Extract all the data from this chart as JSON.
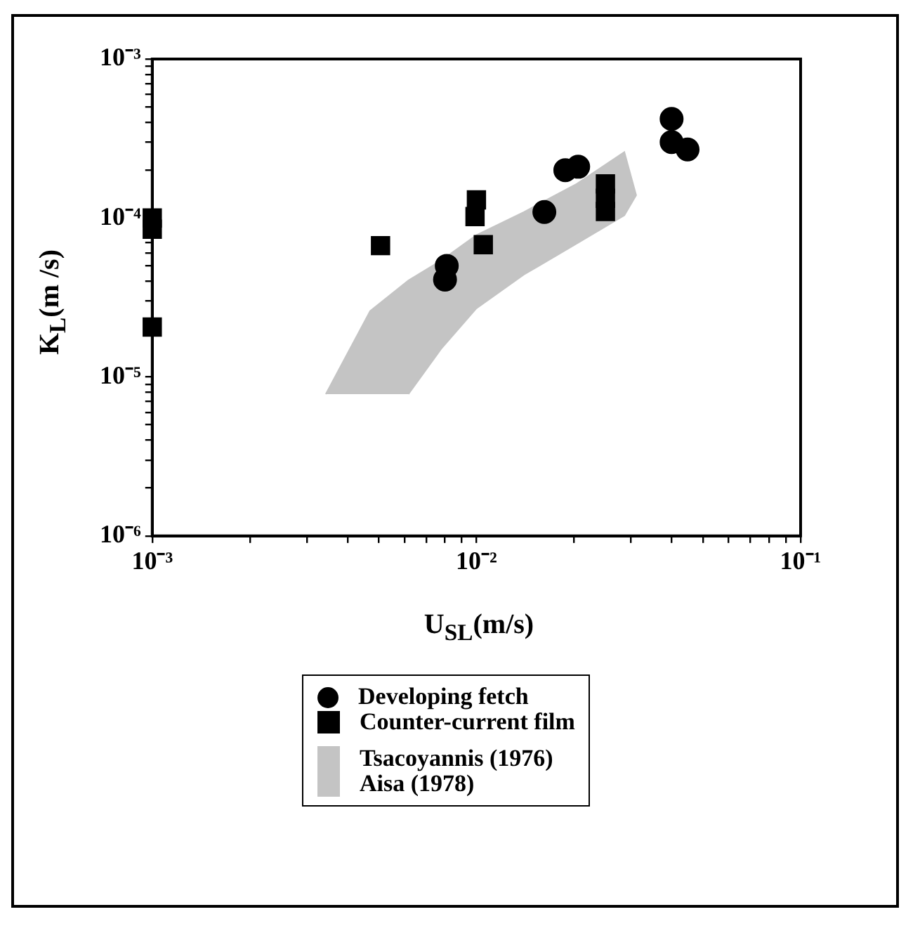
{
  "chart_data": {
    "type": "scatter",
    "xlabel": "U$_{SL}$(m/s)",
    "ylabel": "K$_{L}$(m /s)",
    "log": "xy",
    "grid": false,
    "legend": "bottom",
    "xlim": [
      0.001,
      0.1
    ],
    "ylim": [
      1e-06,
      0.001
    ],
    "xticks": [
      {
        "value": 0.001,
        "label": "10⁻³"
      },
      {
        "value": 0.002,
        "label": null
      },
      {
        "value": 0.003,
        "label": null
      },
      {
        "value": 0.004,
        "label": null
      },
      {
        "value": 0.005,
        "label": null
      },
      {
        "value": 0.006,
        "label": null
      },
      {
        "value": 0.007,
        "label": null
      },
      {
        "value": 0.008,
        "label": null
      },
      {
        "value": 0.009,
        "label": null
      },
      {
        "value": 0.01,
        "label": "10⁻²"
      },
      {
        "value": 0.02,
        "label": null
      },
      {
        "value": 0.03,
        "label": null
      },
      {
        "value": 0.04,
        "label": null
      },
      {
        "value": 0.05,
        "label": null
      },
      {
        "value": 0.06,
        "label": null
      },
      {
        "value": 0.07,
        "label": null
      },
      {
        "value": 0.08,
        "label": null
      },
      {
        "value": 0.09,
        "label": null
      },
      {
        "value": 0.1,
        "label": "10⁻¹"
      }
    ],
    "yticks": [
      {
        "value": 1e-06,
        "label": "10⁻⁶"
      },
      {
        "value": 2e-06,
        "label": null
      },
      {
        "value": 3e-06,
        "label": null
      },
      {
        "value": 4e-06,
        "label": null
      },
      {
        "value": 5e-06,
        "label": null
      },
      {
        "value": 6e-06,
        "label": null
      },
      {
        "value": 7e-06,
        "label": null
      },
      {
        "value": 8e-06,
        "label": null
      },
      {
        "value": 9e-06,
        "label": null
      },
      {
        "value": 1e-05,
        "label": "10⁻⁵"
      },
      {
        "value": 2e-05,
        "label": null
      },
      {
        "value": 3e-05,
        "label": null
      },
      {
        "value": 4e-05,
        "label": null
      },
      {
        "value": 5e-05,
        "label": null
      },
      {
        "value": 6e-05,
        "label": null
      },
      {
        "value": 7e-05,
        "label": null
      },
      {
        "value": 8e-05,
        "label": null
      },
      {
        "value": 9e-05,
        "label": null
      },
      {
        "value": 0.0001,
        "label": "10⁻⁴"
      },
      {
        "value": 0.0002,
        "label": null
      },
      {
        "value": 0.0003,
        "label": null
      },
      {
        "value": 0.0004,
        "label": null
      },
      {
        "value": 0.0005,
        "label": null
      },
      {
        "value": 0.0006,
        "label": null
      },
      {
        "value": 0.0007,
        "label": null
      },
      {
        "value": 0.0008,
        "label": null
      },
      {
        "value": 0.0009,
        "label": null
      },
      {
        "value": 0.001,
        "label": "10⁻³"
      }
    ],
    "series": [
      {
        "name": "Developing  fetch",
        "type": "scatter",
        "marker": "circle",
        "color": "#000000",
        "x": [
          0.04,
          0.04,
          0.0448,
          0.0188,
          0.0206,
          0.0162,
          0.0081,
          0.008
        ],
        "values": [
          0.00042,
          0.0003,
          0.00027,
          0.0002,
          0.00021,
          0.000109,
          5e-05,
          4.1e-05
        ]
      },
      {
        "name": "Counter-current film",
        "type": "scatter",
        "marker": "square",
        "color": "#000000",
        "x": [
          0.001,
          0.001,
          0.001,
          0.00506,
          0.01,
          0.0099,
          0.0105,
          0.025,
          0.025,
          0.025
        ],
        "values": [
          0.0001,
          8.5e-05,
          2.06e-05,
          6.7e-05,
          0.00013,
          0.000102,
          6.8e-05,
          0.000164,
          0.000133,
          0.00011
        ]
      },
      {
        "name": "Tsacoyannis  (1976)\nAisa  (1978)",
        "type": "area",
        "color": "#c4c4c4",
        "x": [
          0.00343,
          0.0047,
          0.00617,
          0.00778,
          0.01,
          0.014,
          0.0204,
          0.0286,
          0.0311,
          0.0286,
          0.0204,
          0.014,
          0.01,
          0.00778,
          0.00617
        ],
        "values": [
          7.8e-06,
          2.6e-05,
          4.05e-05,
          5.4e-05,
          7.8e-05,
          0.000109,
          0.000164,
          0.00026,
          0.000139,
          0.000104,
          6.9e-05,
          4.4e-05,
          2.7e-05,
          1.5e-05,
          7.8e-06
        ]
      }
    ]
  }
}
